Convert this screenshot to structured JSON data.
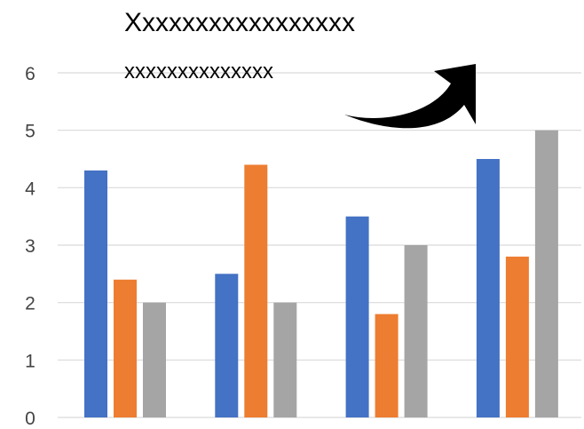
{
  "chart_data": {
    "type": "bar",
    "title": "Xxxxxxxxxxxxxxxxx",
    "subtitle": "xxxxxxxxxxxxxx",
    "categories": [
      "",
      "",
      "",
      ""
    ],
    "series": [
      {
        "values": [
          4.3,
          2.5,
          3.5,
          4.5
        ],
        "color": "#4472C4"
      },
      {
        "values": [
          2.4,
          4.4,
          1.8,
          2.8
        ],
        "color": "#ED7D31"
      },
      {
        "values": [
          2.0,
          2.0,
          3.0,
          5.0
        ],
        "color": "#A5A5A5"
      }
    ],
    "yticks": [
      "0",
      "1",
      "2",
      "3",
      "4",
      "5",
      "6"
    ],
    "ylim": [
      0,
      6
    ],
    "grid": true,
    "legend": "none",
    "annotation": {
      "shape": "curved-arrow-up-right",
      "color": "#000000"
    }
  }
}
